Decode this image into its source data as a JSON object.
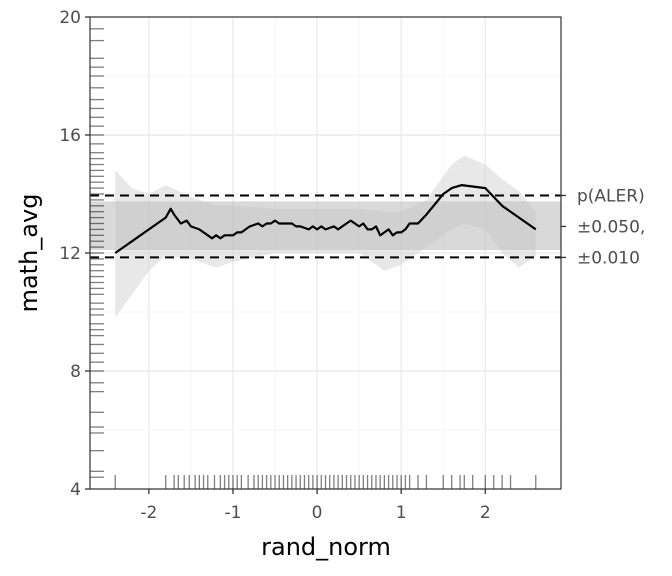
{
  "chart_data": {
    "type": "line",
    "xlabel": "rand_norm",
    "ylabel": "math_avg",
    "xlim": [
      -2.7,
      2.9
    ],
    "ylim": [
      4,
      20
    ],
    "x_ticks": [
      -2,
      -1,
      0,
      1,
      2
    ],
    "y_ticks": [
      4,
      8,
      12,
      16,
      20
    ],
    "grid": true,
    "ale_line": {
      "x": [
        -2.4,
        -2.2,
        -2.0,
        -1.8,
        -1.74,
        -1.7,
        -1.62,
        -1.55,
        -1.5,
        -1.4,
        -1.3,
        -1.25,
        -1.2,
        -1.15,
        -1.1,
        -1.0,
        -0.95,
        -0.9,
        -0.85,
        -0.8,
        -0.7,
        -0.65,
        -0.6,
        -0.55,
        -0.5,
        -0.45,
        -0.4,
        -0.3,
        -0.25,
        -0.2,
        -0.1,
        -0.05,
        0.0,
        0.05,
        0.1,
        0.2,
        0.25,
        0.3,
        0.35,
        0.4,
        0.5,
        0.55,
        0.6,
        0.65,
        0.7,
        0.75,
        0.8,
        0.85,
        0.9,
        0.95,
        1.0,
        1.05,
        1.1,
        1.2,
        1.3,
        1.5,
        1.6,
        1.72,
        2.0,
        2.2,
        2.35,
        2.6
      ],
      "y": [
        12.0,
        12.4,
        12.8,
        13.2,
        13.5,
        13.3,
        13.0,
        13.1,
        12.9,
        12.8,
        12.6,
        12.5,
        12.6,
        12.5,
        12.6,
        12.6,
        12.7,
        12.7,
        12.8,
        12.9,
        13.0,
        12.9,
        13.0,
        13.0,
        13.1,
        13.0,
        13.0,
        13.0,
        12.9,
        12.9,
        12.8,
        12.9,
        12.8,
        12.9,
        12.8,
        12.9,
        12.8,
        12.9,
        13.0,
        13.1,
        12.9,
        13.0,
        12.8,
        12.8,
        12.9,
        12.6,
        12.7,
        12.8,
        12.6,
        12.7,
        12.7,
        12.8,
        13.0,
        13.0,
        13.3,
        14.0,
        14.2,
        14.3,
        14.2,
        13.6,
        13.3,
        12.8
      ]
    },
    "ci_band": {
      "x": [
        -2.4,
        -2.2,
        -2.0,
        -1.8,
        -1.5,
        -1.2,
        -1.0,
        -0.5,
        0.0,
        0.5,
        0.8,
        1.0,
        1.3,
        1.6,
        1.75,
        2.0,
        2.2,
        2.4,
        2.6
      ],
      "upper": [
        14.8,
        14.2,
        14.0,
        14.3,
        13.9,
        13.6,
        13.6,
        13.5,
        13.5,
        13.5,
        13.4,
        13.4,
        13.8,
        15.0,
        15.3,
        15.0,
        14.5,
        14.1,
        13.4
      ],
      "lower": [
        9.8,
        10.6,
        11.4,
        11.9,
        11.8,
        11.5,
        11.7,
        12.0,
        12.0,
        12.0,
        11.4,
        11.6,
        12.2,
        12.8,
        13.0,
        12.8,
        12.0,
        11.5,
        11.9
      ]
    },
    "aler_band": {
      "lower": 12.1,
      "upper": 13.75
    },
    "aler_dashed": {
      "lower": 11.85,
      "upper": 13.95
    },
    "aler_label": [
      "p(ALER)",
      "±0.050,",
      "±0.010"
    ],
    "rug_y": [
      4.4,
      4.6,
      5.3,
      5.9,
      6.1,
      6.6,
      7.3,
      7.6,
      8.0,
      8.3,
      8.6,
      8.9,
      9.2,
      9.4,
      9.6,
      9.9,
      10.1,
      10.3,
      10.6,
      10.8,
      11.0,
      11.2,
      11.4,
      11.6,
      11.8,
      12.0,
      12.2,
      12.4,
      12.6,
      12.8,
      13.0,
      13.2,
      13.4,
      13.6,
      13.8,
      14.0,
      14.2,
      14.4,
      14.6,
      14.8,
      15.0,
      15.2,
      15.4,
      15.7,
      16.0,
      16.3,
      16.6,
      16.9,
      17.2,
      17.6,
      18.0,
      18.3,
      18.6,
      19.2,
      19.6
    ],
    "rug_x": [
      -2.4,
      -1.8,
      -1.7,
      -1.65,
      -1.58,
      -1.52,
      -1.45,
      -1.4,
      -1.35,
      -1.3,
      -1.22,
      -1.15,
      -1.1,
      -1.05,
      -1.0,
      -0.95,
      -0.9,
      -0.82,
      -0.75,
      -0.7,
      -0.65,
      -0.6,
      -0.55,
      -0.5,
      -0.45,
      -0.4,
      -0.35,
      -0.3,
      -0.25,
      -0.2,
      -0.15,
      -0.1,
      -0.05,
      0.0,
      0.05,
      0.1,
      0.15,
      0.2,
      0.25,
      0.3,
      0.35,
      0.4,
      0.45,
      0.5,
      0.55,
      0.6,
      0.65,
      0.7,
      0.75,
      0.8,
      0.85,
      0.9,
      0.95,
      1.0,
      1.05,
      1.1,
      1.2,
      1.3,
      1.5,
      1.6,
      1.7,
      1.75,
      1.85,
      2.0,
      2.1,
      2.2,
      2.3,
      2.6
    ]
  }
}
